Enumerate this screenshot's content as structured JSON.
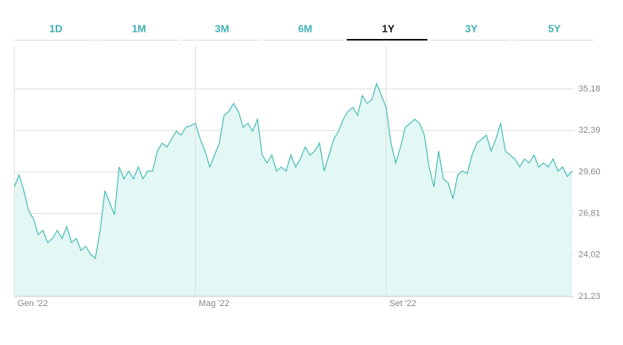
{
  "tabs": [
    "1D",
    "1M",
    "3M",
    "6M",
    "1Y",
    "3Y",
    "5Y"
  ],
  "active_tab": 4,
  "chart_data": {
    "type": "line",
    "fill": true,
    "color": "#48bdb6",
    "fill_color": "#e3f7f5",
    "grid": true,
    "categories": [
      "Gen '22",
      null,
      null,
      null,
      null,
      null,
      null,
      null,
      null,
      null,
      null,
      null,
      null,
      null,
      null,
      null,
      null,
      null,
      null,
      null,
      null,
      null,
      null,
      null,
      null,
      null,
      null,
      null,
      null,
      null,
      null,
      null,
      null,
      null,
      null,
      null,
      null,
      null,
      "Mag '22",
      null,
      null,
      null,
      null,
      null,
      null,
      null,
      null,
      null,
      null,
      null,
      null,
      null,
      null,
      null,
      null,
      null,
      null,
      null,
      null,
      null,
      null,
      null,
      null,
      null,
      null,
      null,
      null,
      null,
      null,
      null,
      null,
      null,
      null,
      null,
      null,
      null,
      null,
      null,
      "Set '22",
      null,
      null,
      null,
      null,
      null,
      null,
      null,
      null,
      null,
      null,
      null,
      null,
      null,
      null,
      null,
      null,
      null,
      null,
      null,
      null,
      null,
      null,
      null,
      null,
      null,
      null,
      null,
      null,
      null,
      null,
      null,
      null,
      null,
      null,
      null,
      null,
      null,
      null,
      null
    ],
    "values": [
      28.61,
      29.41,
      28.34,
      27.0,
      26.47,
      25.4,
      25.67,
      24.86,
      25.13,
      25.67,
      25.13,
      25.93,
      24.86,
      25.13,
      24.33,
      24.6,
      24.06,
      23.8,
      25.67,
      28.34,
      27.54,
      26.74,
      29.94,
      29.14,
      29.67,
      29.14,
      29.94,
      29.14,
      29.67,
      29.67,
      31.01,
      31.55,
      31.28,
      31.81,
      32.35,
      32.08,
      32.61,
      32.72,
      32.88,
      31.81,
      31.01,
      29.94,
      30.74,
      31.55,
      33.42,
      33.68,
      34.22,
      33.68,
      32.61,
      32.88,
      32.35,
      33.15,
      30.74,
      30.21,
      30.74,
      29.67,
      29.94,
      29.67,
      30.74,
      29.94,
      30.48,
      31.28,
      30.74,
      31.01,
      31.55,
      29.67,
      30.74,
      31.81,
      32.35,
      33.15,
      33.68,
      33.95,
      33.42,
      34.75,
      34.22,
      34.48,
      35.55,
      34.75,
      33.95,
      31.55,
      30.21,
      31.28,
      32.61,
      32.88,
      33.15,
      32.88,
      32.08,
      29.94,
      28.61,
      31.01,
      29.14,
      28.87,
      27.8,
      29.41,
      29.67,
      29.51,
      30.74,
      31.55,
      31.81,
      32.08,
      31.01,
      31.81,
      32.88,
      31.01,
      30.74,
      30.48,
      29.94,
      30.48,
      30.21,
      30.74,
      29.94,
      30.21,
      29.94,
      30.48,
      29.67,
      29.94,
      29.3,
      29.67
    ],
    "ylim": [
      21.23,
      38.07
    ],
    "yticks": [
      {
        "value": 21.23,
        "label": "21,23"
      },
      {
        "value": 24.02,
        "label": "24,02"
      },
      {
        "value": 26.81,
        "label": "26,81"
      },
      {
        "value": 29.6,
        "label": "29,60"
      },
      {
        "value": 32.39,
        "label": "32,39"
      },
      {
        "value": 35.18,
        "label": "35,18"
      }
    ]
  }
}
